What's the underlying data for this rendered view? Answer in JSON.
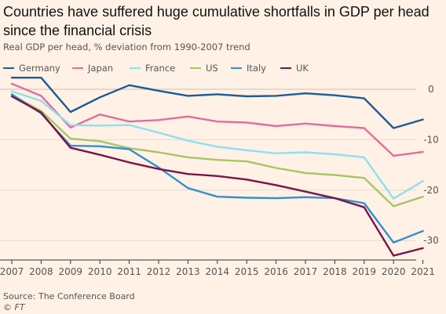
{
  "title": "Countries have suffered huge cumulative shortfalls in GDP per head since the financial crisis",
  "subtitle": "Real GDP per head, % deviation from 1990-2007 trend",
  "source": "Source: The Conference Board",
  "credit": "© FT",
  "chart_data": {
    "type": "line",
    "x": [
      "2007",
      "2008",
      "2009",
      "2010",
      "2011",
      "2012",
      "2013",
      "2014",
      "2015",
      "2016",
      "2017",
      "2018",
      "2019",
      "2020",
      "2021"
    ],
    "ylim": [
      -32,
      2
    ],
    "yticks": [
      0,
      -10,
      -20,
      -30
    ],
    "ytick_labels": [
      "0",
      "-10",
      "-20",
      "-30"
    ],
    "grid": true,
    "legend_position": "top",
    "series": [
      {
        "name": "Germany",
        "color": "#1b5c96",
        "values": [
          2.3,
          2.3,
          -4.5,
          -1.6,
          0.8,
          -0.3,
          -1.3,
          -1.0,
          -1.4,
          -1.3,
          -0.8,
          -1.2,
          -1.8,
          -7.7,
          -6.0
        ]
      },
      {
        "name": "Japan",
        "color": "#e36c9b",
        "values": [
          1.1,
          -1.3,
          -7.6,
          -5.0,
          -6.4,
          -6.1,
          -5.4,
          -6.4,
          -6.6,
          -7.3,
          -6.8,
          -7.3,
          -7.7,
          -13.2,
          -12.4
        ]
      },
      {
        "name": "France",
        "color": "#8ae2ef",
        "values": [
          -0.4,
          -2.3,
          -7.1,
          -7.2,
          -7.1,
          -8.6,
          -10.2,
          -11.4,
          -12.1,
          -12.7,
          -12.5,
          -12.9,
          -13.5,
          -21.7,
          -18.2
        ]
      },
      {
        "name": "US",
        "color": "#a9c466",
        "values": [
          -1.2,
          -4.3,
          -9.8,
          -10.3,
          -11.7,
          -12.5,
          -13.5,
          -14.0,
          -14.3,
          -15.6,
          -16.6,
          -17.0,
          -17.6,
          -23.2,
          -21.3
        ]
      },
      {
        "name": "Italy",
        "color": "#3091cb",
        "values": [
          -1.0,
          -4.8,
          -11.2,
          -11.3,
          -11.9,
          -15.5,
          -19.6,
          -21.3,
          -21.5,
          -21.6,
          -21.4,
          -21.6,
          -22.6,
          -30.4,
          -28.1
        ]
      },
      {
        "name": "UK",
        "color": "#7a1447",
        "values": [
          -1.4,
          -4.6,
          -11.6,
          -13.0,
          -14.5,
          -15.8,
          -16.8,
          -17.2,
          -17.9,
          -19.0,
          -20.3,
          -21.6,
          -23.4,
          -33.0,
          -31.5
        ]
      }
    ]
  }
}
